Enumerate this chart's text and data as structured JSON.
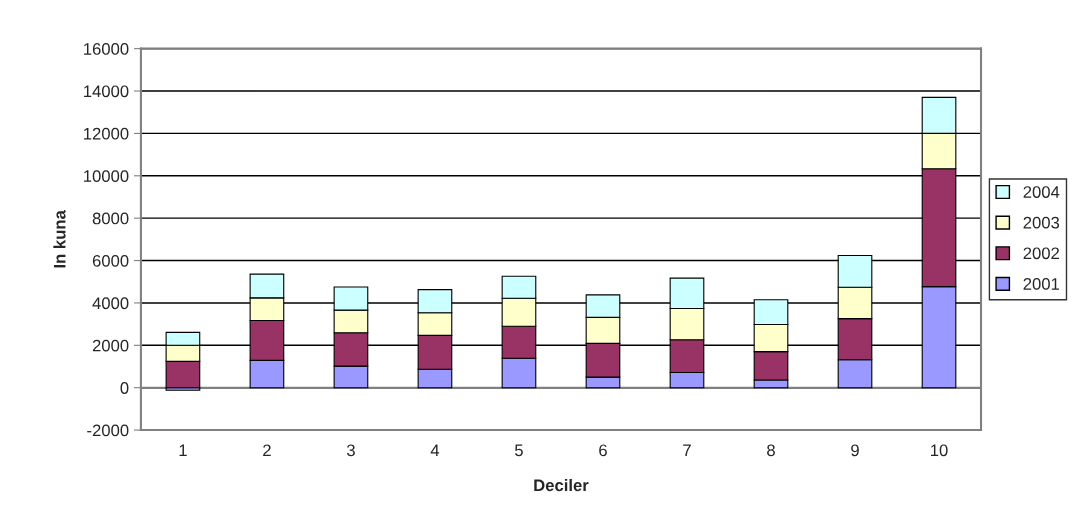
{
  "chart_data": {
    "type": "bar",
    "stacked": true,
    "xlabel": "Deciler",
    "ylabel": "In kuna",
    "categories": [
      "1",
      "2",
      "3",
      "4",
      "5",
      "6",
      "7",
      "8",
      "9",
      "10"
    ],
    "series": [
      {
        "name": "2001",
        "color": "#9999ff",
        "values": [
          -120,
          1290,
          1020,
          870,
          1390,
          500,
          720,
          360,
          1320,
          4770
        ]
      },
      {
        "name": "2002",
        "color": "#993366",
        "values": [
          1240,
          1880,
          1570,
          1600,
          1510,
          1590,
          1540,
          1340,
          1940,
          5560
        ]
      },
      {
        "name": "2003",
        "color": "#ffffcc",
        "values": [
          760,
          1070,
          1070,
          1070,
          1320,
          1230,
          1480,
          1280,
          1480,
          1670
        ]
      },
      {
        "name": "2004",
        "color": "#ccffff",
        "values": [
          610,
          1120,
          1090,
          1090,
          1040,
          1060,
          1430,
          1170,
          1500,
          1700
        ]
      }
    ],
    "ylim": [
      -2000,
      16000
    ],
    "yticks": [
      -2000,
      0,
      2000,
      4000,
      6000,
      8000,
      10000,
      12000,
      14000,
      16000
    ],
    "grid": "y",
    "legend": "right"
  }
}
